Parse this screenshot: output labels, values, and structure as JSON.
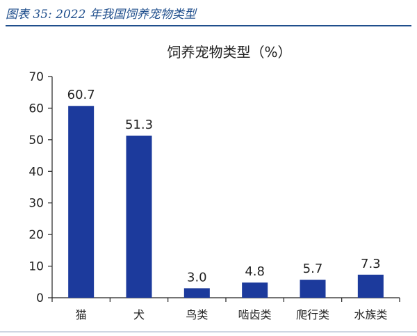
{
  "caption": "图表 35: 2022 年我国饲养宠物类型",
  "colors": {
    "accent": "#1f4e8c",
    "bar": "#1c3a9c",
    "axis": "#222222"
  },
  "chart_data": {
    "type": "bar",
    "title": "饲养宠物类型（%）",
    "categories": [
      "猫",
      "犬",
      "鸟类",
      "啮齿类",
      "爬行类",
      "水族类"
    ],
    "values": [
      60.7,
      51.3,
      3.0,
      4.8,
      5.7,
      7.3
    ],
    "value_labels": [
      "60.7",
      "51.3",
      "3.0",
      "4.8",
      "5.7",
      "7.3"
    ],
    "xlabel": "",
    "ylabel": "",
    "ylim": [
      0,
      70
    ],
    "yticks": [
      0,
      10,
      20,
      30,
      40,
      50,
      60,
      70
    ],
    "grid": false,
    "legend": "none"
  }
}
